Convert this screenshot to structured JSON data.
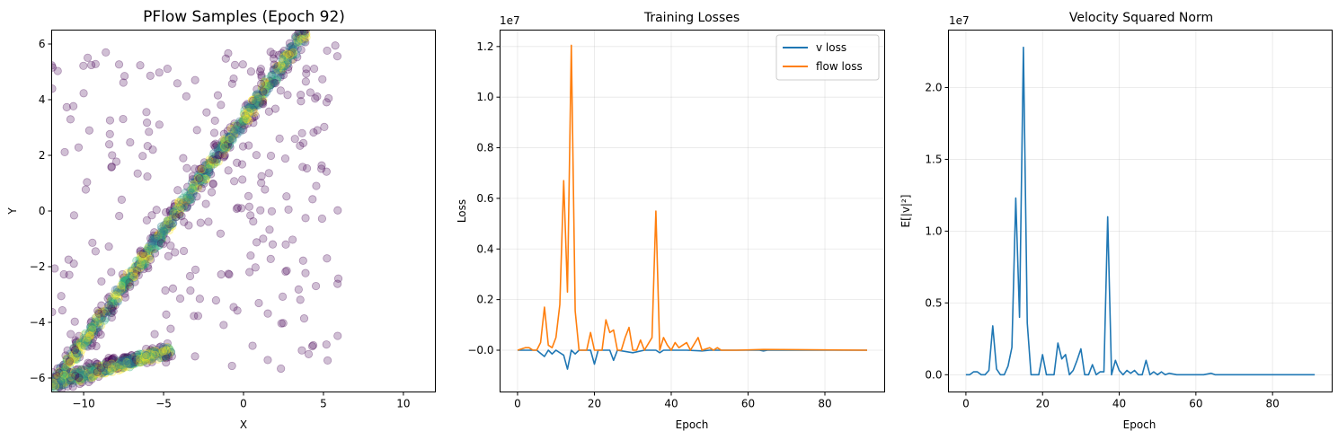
{
  "chart_data": [
    {
      "id": "samples",
      "type": "scatter",
      "title": "PFlow Samples (Epoch 92)",
      "xlabel": "X",
      "ylabel": "Y",
      "xlim": [
        -12,
        12
      ],
      "ylim": [
        -6.5,
        6.5
      ],
      "xticks": [
        -10,
        -5,
        0,
        5,
        10
      ],
      "yticks": [
        -6,
        -4,
        -2,
        0,
        2,
        4,
        6
      ],
      "grid": false,
      "colormap": [
        "#440154",
        "#31688e",
        "#26828e",
        "#35b779",
        "#fde725"
      ],
      "colorscale_description": "viridis",
      "point_alpha": 0.25,
      "structures": [
        {
          "kind": "band",
          "from": [
            -12,
            -6.3
          ],
          "to": [
            4,
            6.5
          ],
          "spread": 0.25
        },
        {
          "kind": "band",
          "from": [
            -12,
            -6.2
          ],
          "to": [
            -4.5,
            -5.0
          ],
          "spread": 0.25
        },
        {
          "kind": "diffuse",
          "x_range": [
            -12,
            6
          ],
          "y_range": [
            -6,
            6
          ]
        }
      ]
    },
    {
      "id": "losses",
      "type": "line",
      "title": "Training Losses",
      "xlabel": "Epoch",
      "ylabel": "Loss",
      "offset_label": "1e7",
      "xlim": [
        -4.55,
        95.55
      ],
      "ylim": [
        -0.165,
        1.265
      ],
      "xticks": [
        0,
        20,
        40,
        60,
        80
      ],
      "yticks": [
        "-0.0",
        "0.2",
        "0.4",
        "0.6",
        "0.8",
        "1.0",
        "1.2"
      ],
      "grid": true,
      "legend": "top-right",
      "series": [
        {
          "name": "v loss",
          "color": "#1f77b4",
          "points": [
            [
              0,
              0.0
            ],
            [
              2,
              0.0
            ],
            [
              5,
              0.0
            ],
            [
              7,
              -0.025
            ],
            [
              8,
              0.0
            ],
            [
              9,
              -0.015
            ],
            [
              10,
              0.0
            ],
            [
              12,
              -0.02
            ],
            [
              13,
              -0.075
            ],
            [
              14,
              0.0
            ],
            [
              15,
              -0.015
            ],
            [
              16,
              0.0
            ],
            [
              19,
              0.0
            ],
            [
              20,
              -0.055
            ],
            [
              21,
              0.0
            ],
            [
              24,
              0.0
            ],
            [
              25,
              -0.04
            ],
            [
              26,
              0.0
            ],
            [
              30,
              -0.01
            ],
            [
              33,
              0.0
            ],
            [
              36,
              0.0
            ],
            [
              37,
              -0.01
            ],
            [
              38,
              0.0
            ],
            [
              41,
              0.0
            ],
            [
              44,
              0.0
            ],
            [
              48,
              -0.003
            ],
            [
              50,
              0.0
            ],
            [
              55,
              0.0
            ],
            [
              60,
              0.0
            ],
            [
              63,
              0.0
            ],
            [
              64,
              -0.003
            ],
            [
              65,
              0.0
            ],
            [
              91,
              0.0
            ]
          ]
        },
        {
          "name": "flow loss",
          "color": "#ff7f0e",
          "points": [
            [
              0,
              0.0
            ],
            [
              2,
              0.01
            ],
            [
              3,
              0.01
            ],
            [
              4,
              0.0
            ],
            [
              5,
              0.0
            ],
            [
              6,
              0.03
            ],
            [
              7,
              0.17
            ],
            [
              8,
              0.02
            ],
            [
              9,
              0.01
            ],
            [
              10,
              0.05
            ],
            [
              11,
              0.18
            ],
            [
              12,
              0.67
            ],
            [
              13,
              0.23
            ],
            [
              14,
              1.205
            ],
            [
              15,
              0.155
            ],
            [
              16,
              0.0
            ],
            [
              18,
              0.0
            ],
            [
              19,
              0.07
            ],
            [
              20,
              0.0
            ],
            [
              21,
              0.0
            ],
            [
              22,
              0.0
            ],
            [
              23,
              0.12
            ],
            [
              24,
              0.07
            ],
            [
              25,
              0.08
            ],
            [
              26,
              0.0
            ],
            [
              27,
              0.0
            ],
            [
              28,
              0.05
            ],
            [
              29,
              0.09
            ],
            [
              30,
              0.0
            ],
            [
              31,
              0.0
            ],
            [
              32,
              0.04
            ],
            [
              33,
              0.0
            ],
            [
              35,
              0.05
            ],
            [
              36,
              0.55
            ],
            [
              37,
              0.0
            ],
            [
              38,
              0.05
            ],
            [
              39,
              0.02
            ],
            [
              40,
              0.0
            ],
            [
              41,
              0.03
            ],
            [
              42,
              0.01
            ],
            [
              44,
              0.03
            ],
            [
              45,
              0.0
            ],
            [
              47,
              0.05
            ],
            [
              48,
              0.0
            ],
            [
              50,
              0.01
            ],
            [
              51,
              0.0
            ],
            [
              52,
              0.01
            ],
            [
              53,
              0.0
            ],
            [
              57,
              0.0
            ],
            [
              64,
              0.003
            ],
            [
              91,
              0.0
            ]
          ]
        }
      ]
    },
    {
      "id": "velocity",
      "type": "line",
      "title": "Velocity Squared Norm",
      "xlabel": "Epoch",
      "ylabel": "E[|v|²]",
      "offset_label": "1e7",
      "xlim": [
        -4.55,
        95.55
      ],
      "ylim": [
        -0.12,
        2.4
      ],
      "xticks": [
        0,
        20,
        40,
        60,
        80
      ],
      "yticks": [
        "0.0",
        "0.5",
        "1.0",
        "1.5",
        "2.0"
      ],
      "grid": true,
      "series": [
        {
          "color": "#1f77b4",
          "points": [
            [
              0,
              0.0
            ],
            [
              1,
              0.0
            ],
            [
              2,
              0.02
            ],
            [
              3,
              0.02
            ],
            [
              4,
              0.0
            ],
            [
              5,
              0.0
            ],
            [
              6,
              0.03
            ],
            [
              7,
              0.34
            ],
            [
              8,
              0.04
            ],
            [
              9,
              0.0
            ],
            [
              10,
              0.0
            ],
            [
              11,
              0.06
            ],
            [
              12,
              0.19
            ],
            [
              13,
              1.23
            ],
            [
              14,
              0.4
            ],
            [
              15,
              2.28
            ],
            [
              16,
              0.36
            ],
            [
              17,
              0.0
            ],
            [
              18,
              0.0
            ],
            [
              19,
              0.0
            ],
            [
              20,
              0.14
            ],
            [
              21,
              0.0
            ],
            [
              22,
              0.0
            ],
            [
              23,
              0.0
            ],
            [
              24,
              0.22
            ],
            [
              25,
              0.11
            ],
            [
              26,
              0.14
            ],
            [
              27,
              0.0
            ],
            [
              28,
              0.03
            ],
            [
              29,
              0.1
            ],
            [
              30,
              0.18
            ],
            [
              31,
              0.0
            ],
            [
              32,
              0.0
            ],
            [
              33,
              0.07
            ],
            [
              34,
              0.0
            ],
            [
              35,
              0.02
            ],
            [
              36,
              0.02
            ],
            [
              37,
              1.1
            ],
            [
              38,
              0.0
            ],
            [
              39,
              0.1
            ],
            [
              40,
              0.03
            ],
            [
              41,
              0.0
            ],
            [
              42,
              0.03
            ],
            [
              43,
              0.01
            ],
            [
              44,
              0.03
            ],
            [
              45,
              0.0
            ],
            [
              46,
              0.0
            ],
            [
              47,
              0.1
            ],
            [
              48,
              0.0
            ],
            [
              49,
              0.02
            ],
            [
              50,
              0.0
            ],
            [
              51,
              0.02
            ],
            [
              52,
              0.0
            ],
            [
              53,
              0.01
            ],
            [
              55,
              0.0
            ],
            [
              57,
              0.0
            ],
            [
              62,
              0.0
            ],
            [
              64,
              0.01
            ],
            [
              65,
              0.0
            ],
            [
              91,
              0.0
            ]
          ]
        }
      ]
    }
  ]
}
